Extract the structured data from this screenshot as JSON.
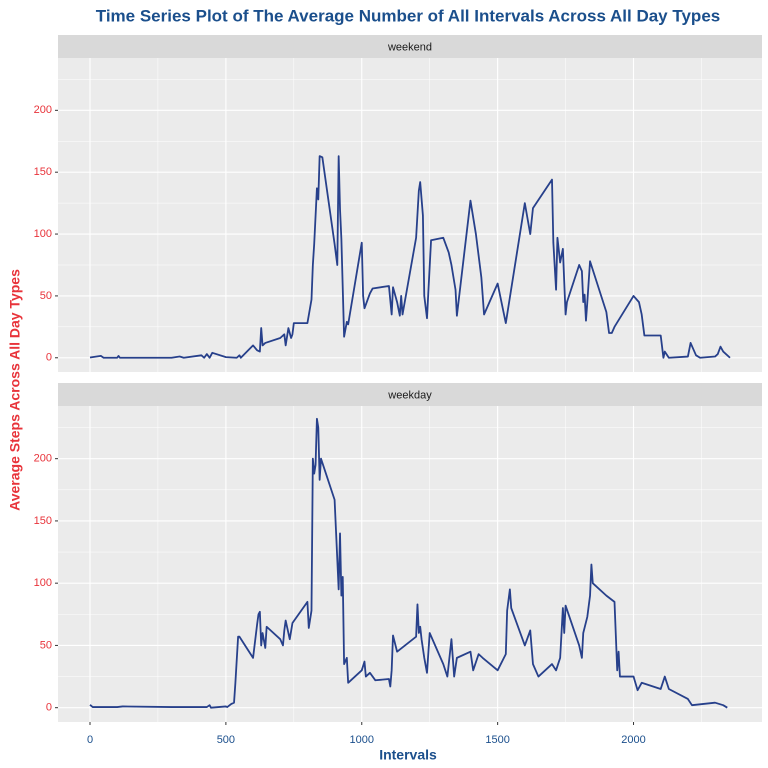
{
  "chart_data": {
    "type": "line",
    "title": "Time Series Plot of The Average Number of All Intervals Across All Day Types",
    "x_label": "Intervals",
    "y_label": "Average Steps Across All Day Types",
    "color": "#27408b",
    "xlim": [
      -117.75,
      2472.75
    ],
    "xticks": [
      0,
      500,
      1000,
      1500,
      2000
    ],
    "minor_xticks": [
      250,
      750,
      1250,
      1750,
      2250
    ],
    "ylim": [
      -11.5,
      242.3
    ],
    "yticks": [
      0,
      50,
      100,
      150,
      200
    ],
    "minor_yticks": [
      25,
      75,
      125,
      175,
      225
    ],
    "grid": true,
    "facets": [
      {
        "label": "weekend",
        "x": [
          0,
          40,
          50,
          100,
          105,
          110,
          300,
          330,
          345,
          410,
          420,
          430,
          440,
          450,
          500,
          540,
          550,
          555,
          600,
          615,
          625,
          630,
          635,
          645,
          700,
          715,
          720,
          730,
          740,
          745,
          750,
          800,
          815,
          820,
          825,
          835,
          840,
          845,
          855,
          900,
          910,
          915,
          920,
          925,
          935,
          945,
          950,
          1000,
          1005,
          1010,
          1030,
          1040,
          1100,
          1110,
          1115,
          1130,
          1140,
          1145,
          1150,
          1200,
          1210,
          1215,
          1225,
          1230,
          1240,
          1255,
          1300,
          1320,
          1330,
          1345,
          1350,
          1400,
          1420,
          1440,
          1450,
          1500,
          1530,
          1600,
          1620,
          1630,
          1700,
          1705,
          1715,
          1720,
          1730,
          1740,
          1750,
          1755,
          1800,
          1810,
          1815,
          1820,
          1825,
          1830,
          1840,
          1900,
          1910,
          1920,
          1930,
          2000,
          2020,
          2030,
          2040,
          2100,
          2110,
          2115,
          2130,
          2200,
          2210,
          2230,
          2245,
          2300,
          2310,
          2320,
          2330,
          2355
        ],
        "values": [
          0.2,
          1.5,
          0,
          0,
          1.5,
          0,
          0,
          1,
          0,
          2,
          0,
          3,
          0,
          4,
          0.5,
          0,
          2,
          0,
          10,
          6,
          5,
          24,
          10,
          12,
          16,
          19,
          10,
          24,
          16,
          19,
          28,
          28,
          47,
          75,
          92,
          137,
          128,
          163,
          162,
          92,
          75,
          163,
          120,
          96,
          17,
          29,
          27,
          93,
          50,
          40,
          52,
          56,
          58,
          35,
          57,
          45,
          34,
          50,
          35,
          97,
          135,
          142,
          115,
          50,
          32,
          95,
          97,
          85,
          75,
          55,
          34,
          127,
          100,
          65,
          35,
          60,
          28,
          125,
          100,
          121,
          144,
          93,
          55,
          97,
          77,
          88,
          35,
          45,
          75,
          70,
          45,
          51,
          30,
          45,
          78,
          37,
          20,
          20,
          25,
          50,
          45,
          35,
          18,
          18,
          0,
          5,
          0,
          1,
          12,
          2,
          0,
          1,
          3,
          9,
          5,
          0
        ]
      },
      {
        "label": "weekday",
        "x": [
          0,
          10,
          100,
          120,
          300,
          430,
          440,
          445,
          500,
          505,
          520,
          530,
          535,
          545,
          550,
          600,
          615,
          620,
          625,
          630,
          635,
          645,
          650,
          700,
          710,
          715,
          720,
          735,
          745,
          800,
          805,
          815,
          820,
          825,
          830,
          835,
          840,
          845,
          850,
          900,
          915,
          920,
          925,
          930,
          935,
          945,
          950,
          1000,
          1010,
          1015,
          1030,
          1050,
          1100,
          1105,
          1110,
          1115,
          1130,
          1200,
          1205,
          1210,
          1215,
          1220,
          1230,
          1240,
          1250,
          1300,
          1315,
          1330,
          1340,
          1350,
          1400,
          1410,
          1430,
          1445,
          1500,
          1530,
          1535,
          1545,
          1550,
          1600,
          1620,
          1630,
          1650,
          1700,
          1715,
          1730,
          1740,
          1745,
          1750,
          1800,
          1810,
          1815,
          1830,
          1840,
          1845,
          1850,
          1900,
          1930,
          1940,
          1945,
          1950,
          2000,
          2015,
          2030,
          2100,
          2115,
          2130,
          2200,
          2215,
          2300,
          2330,
          2345
        ],
        "values": [
          2.3,
          0.5,
          0.5,
          1,
          0.5,
          0.5,
          2,
          0,
          1,
          0.5,
          3,
          4,
          20,
          57,
          57,
          40,
          67,
          75,
          77,
          50,
          60,
          48,
          65,
          55,
          50,
          62,
          70,
          55,
          68,
          85,
          64,
          78,
          200,
          188,
          195,
          232,
          225,
          183,
          200,
          167,
          95,
          140,
          90,
          105,
          35,
          40,
          20,
          30,
          37,
          25,
          28,
          22,
          23,
          17,
          30,
          58,
          45,
          57,
          83,
          60,
          65,
          55,
          40,
          28,
          60,
          35,
          25,
          55,
          25,
          40,
          45,
          30,
          43,
          40,
          30,
          43,
          78,
          95,
          80,
          50,
          62,
          35,
          25,
          35,
          30,
          40,
          80,
          60,
          82,
          50,
          40,
          60,
          73,
          90,
          115,
          100,
          90,
          85,
          30,
          45,
          25,
          25,
          14,
          20,
          15,
          25,
          15,
          7,
          2,
          4,
          2,
          0
        ]
      }
    ]
  }
}
